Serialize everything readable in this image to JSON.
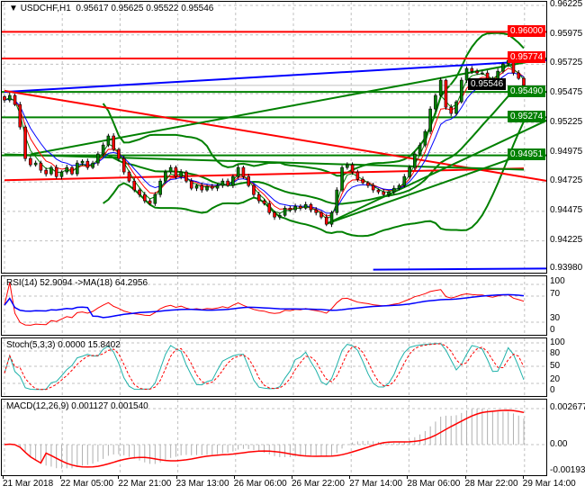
{
  "header": {
    "symbol": "USDCHF,H1",
    "open": "0.95617",
    "high": "0.95625",
    "low": "0.95522",
    "close": "0.95546"
  },
  "colors": {
    "bull": "#008000",
    "bear": "#ff0000",
    "band": "#008000",
    "support": "#008000",
    "resistance": "#ff0000",
    "trend_blue": "#0000ff",
    "grid": "#c0c0c0",
    "current": "#000000"
  },
  "price_axis": [
    "0.96225",
    "0.95975",
    "0.95725",
    "0.95475",
    "0.95225",
    "0.94975",
    "0.94725",
    "0.94475",
    "0.94225",
    "0.93980"
  ],
  "levels": [
    {
      "price": 0.96,
      "label": "0.96000",
      "color": "#ff0000"
    },
    {
      "price": 0.95774,
      "label": "0.95774",
      "color": "#ff0000"
    },
    {
      "price": 0.9549,
      "label": "0.95490",
      "color": "#008000"
    },
    {
      "price": 0.95274,
      "label": "0.95274",
      "color": "#008000"
    },
    {
      "price": 0.94951,
      "label": "0.94951",
      "color": "#008000"
    }
  ],
  "current_price": {
    "price": 0.95546,
    "label": "0.95546"
  },
  "chart_data": {
    "type": "candlestick",
    "title": "USDCHF,H1",
    "ylim": [
      0.9398,
      0.96225
    ],
    "closes": [
      0.95421,
      0.9546,
      0.95383,
      0.95192,
      0.94924,
      0.94871,
      0.94886,
      0.94825,
      0.94794,
      0.94848,
      0.94771,
      0.9481,
      0.94848,
      0.94794,
      0.94886,
      0.94901,
      0.94848,
      0.94886,
      0.94963,
      0.95039,
      0.95116,
      0.95001,
      0.94924,
      0.9481,
      0.94733,
      0.94657,
      0.94618,
      0.94565,
      0.94542,
      0.94618,
      0.94733,
      0.9481,
      0.94848,
      0.94771,
      0.9481,
      0.94733,
      0.94672,
      0.94695,
      0.94657,
      0.94687,
      0.94672,
      0.94695,
      0.94733,
      0.94695,
      0.94771,
      0.94848,
      0.94771,
      0.94695,
      0.94618,
      0.94565,
      0.94542,
      0.94465,
      0.94427,
      0.94442,
      0.94503,
      0.94488,
      0.94519,
      0.94503,
      0.94534,
      0.94488,
      0.94465,
      0.94427,
      0.94366,
      0.94465,
      0.94657,
      0.94848,
      0.94871,
      0.9481,
      0.94748,
      0.94718,
      0.94695,
      0.94657,
      0.94641,
      0.94618,
      0.94641,
      0.94672,
      0.94695,
      0.94771,
      0.94848,
      0.94963,
      0.95039,
      0.95154,
      0.95345,
      0.9546,
      0.9559,
      0.9536,
      0.95307,
      0.95406,
      0.9559,
      0.95689,
      0.95666,
      0.95651,
      0.95651,
      0.95605,
      0.95575,
      0.95666,
      0.95727,
      0.95758,
      0.95651,
      0.95605,
      0.95546
    ],
    "trendlines": [
      {
        "from": [
          0,
          0.9549
        ],
        "to": [
          105,
          0.9576
        ],
        "color": "#0000ff"
      },
      {
        "from": [
          0,
          0.955
        ],
        "to": [
          105,
          0.9473
        ],
        "color": "#ff0000"
      },
      {
        "from": [
          0,
          0.9474
        ],
        "to": [
          100,
          0.9484
        ],
        "color": "#ff0000"
      },
      {
        "from": [
          5,
          0.9496
        ],
        "to": [
          105,
          0.9578
        ],
        "color": "#008000"
      },
      {
        "from": [
          0,
          0.9496
        ],
        "to": [
          100,
          0.9483
        ],
        "color": "#008000"
      },
      {
        "from": [
          62,
          0.9437
        ],
        "to": [
          105,
          0.9526
        ],
        "color": "#008000"
      },
      {
        "from": [
          62,
          0.9437
        ],
        "to": [
          100,
          0.9496
        ],
        "color": "#008000"
      },
      {
        "from": [
          71,
          0.9398
        ],
        "to": [
          105,
          0.9399
        ],
        "color": "#0000ff"
      }
    ],
    "time_labels": [
      "21 Mar 2018",
      "22 Mar 05:00",
      "22 Mar 21:00",
      "23 Mar 13:00",
      "26 Mar 06:00",
      "26 Mar 22:00",
      "27 Mar 14:00",
      "28 Mar 06:00",
      "28 Mar 22:00",
      "29 Mar 14:00"
    ]
  },
  "rsi": {
    "label": "RSI(14) 52.9094  ->MA(18) 64.2956",
    "axis": [
      "100",
      "70",
      "30",
      "0"
    ]
  },
  "stoch": {
    "label": "Stoch(5,3,3) 0.0000 15.8402",
    "axis": [
      "100",
      "80",
      "50",
      "20",
      "0"
    ]
  },
  "macd": {
    "label": "MACD(12,26,9) 0.001127 0.001540",
    "axis": [
      "0.002677",
      "0.00",
      "-0.001931"
    ]
  }
}
